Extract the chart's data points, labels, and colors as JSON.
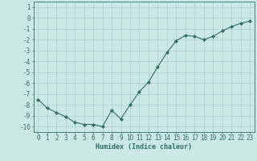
{
  "x": [
    0,
    1,
    2,
    3,
    4,
    5,
    6,
    7,
    8,
    9,
    10,
    11,
    12,
    13,
    14,
    15,
    16,
    17,
    18,
    19,
    20,
    21,
    22,
    23
  ],
  "y": [
    -7.5,
    -8.3,
    -8.7,
    -9.1,
    -9.6,
    -9.8,
    -9.8,
    -10.0,
    -8.5,
    -9.3,
    -8.0,
    -6.8,
    -5.9,
    -4.5,
    -3.2,
    -2.1,
    -1.6,
    -1.7,
    -2.0,
    -1.7,
    -1.2,
    -0.8,
    -0.5,
    -0.3
  ],
  "line_color": "#2e6e65",
  "marker": "D",
  "marker_size": 2.2,
  "bg_color": "#cce8e4",
  "grid_color": "#aacfcc",
  "xlabel": "Humidex (Indice chaleur)",
  "xlim": [
    -0.5,
    23.5
  ],
  "ylim": [
    -10.5,
    1.5
  ],
  "yticks": [
    1,
    0,
    -1,
    -2,
    -3,
    -4,
    -5,
    -6,
    -7,
    -8,
    -9,
    -10
  ],
  "xticks": [
    0,
    1,
    2,
    3,
    4,
    5,
    6,
    7,
    8,
    9,
    10,
    11,
    12,
    13,
    14,
    15,
    16,
    17,
    18,
    19,
    20,
    21,
    22,
    23
  ],
  "font_color": "#2e6e65",
  "label_fontsize": 6.0,
  "tick_fontsize": 5.5
}
